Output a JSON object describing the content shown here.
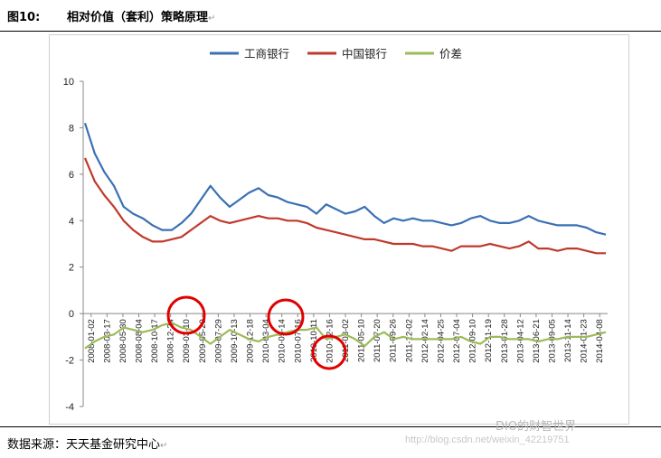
{
  "header": {
    "figure_label": "图10:",
    "title": "相对价值（套利）策略原理",
    "mark": "↵"
  },
  "footer": {
    "source": "数据来源：天天基金研究中心",
    "mark": "↵"
  },
  "watermark": {
    "url": "http://blog.csdn.net/weixin_42219751",
    "logo": "DIO的财智世界"
  },
  "chart_data": {
    "type": "line",
    "title": "",
    "xlabel": "",
    "ylabel": "",
    "ylim": [
      -4,
      10
    ],
    "yticks": [
      -4,
      -2,
      0,
      2,
      4,
      6,
      8,
      10
    ],
    "grid": false,
    "legend_position": "top",
    "x_tick_labels": [
      "2008-01-02",
      "2008-03-17",
      "2008-05-30",
      "2008-08-04",
      "2008-10-17",
      "2008-12-24",
      "2009-03-10",
      "2009-05-20",
      "2009-07-29",
      "2009-10-13",
      "2009-12-18",
      "2010-03-04",
      "2010-05-14",
      "2010-07-16",
      "2010-10-11",
      "2010-12-16",
      "2011-03-02",
      "2011-05-10",
      "2011-07-20",
      "2011-09-26",
      "2011-12-02",
      "2012-02-14",
      "2012-04-25",
      "2012-07-04",
      "2012-09-10",
      "2012-11-19",
      "2013-01-28",
      "2013-04-12",
      "2013-06-21",
      "2013-09-05",
      "2013-11-14",
      "2014-01-23",
      "2014-04-08"
    ],
    "series": [
      {
        "name": "工商银行",
        "color": "#3a70b4",
        "values": [
          8.2,
          6.9,
          6.1,
          5.5,
          4.6,
          4.3,
          4.1,
          3.8,
          3.6,
          3.6,
          3.9,
          4.3,
          4.9,
          5.5,
          5.0,
          4.6,
          4.9,
          5.2,
          5.4,
          5.1,
          5.0,
          4.8,
          4.7,
          4.6,
          4.3,
          4.7,
          4.5,
          4.3,
          4.4,
          4.6,
          4.2,
          3.9,
          4.1,
          4.0,
          4.1,
          4.0,
          4.0,
          3.9,
          3.8,
          3.9,
          4.1,
          4.2,
          4.0,
          3.9,
          3.9,
          4.0,
          4.2,
          4.0,
          3.9,
          3.8,
          3.8,
          3.8,
          3.7,
          3.5,
          3.4
        ]
      },
      {
        "name": "中国银行",
        "color": "#c0392b",
        "values": [
          6.7,
          5.7,
          5.1,
          4.6,
          4.0,
          3.6,
          3.3,
          3.1,
          3.1,
          3.2,
          3.3,
          3.6,
          3.9,
          4.2,
          4.0,
          3.9,
          4.0,
          4.1,
          4.2,
          4.1,
          4.1,
          4.0,
          4.0,
          3.9,
          3.7,
          3.6,
          3.5,
          3.4,
          3.3,
          3.2,
          3.2,
          3.1,
          3.0,
          3.0,
          3.0,
          2.9,
          2.9,
          2.8,
          2.7,
          2.9,
          2.9,
          2.9,
          3.0,
          2.9,
          2.8,
          2.9,
          3.1,
          2.8,
          2.8,
          2.7,
          2.8,
          2.8,
          2.7,
          2.6,
          2.6
        ]
      },
      {
        "name": "价差",
        "color": "#9cbb58",
        "values": [
          -1.5,
          -1.2,
          -1.0,
          -0.9,
          -0.6,
          -0.7,
          -0.8,
          -0.7,
          -0.5,
          -0.4,
          -0.6,
          -0.7,
          -1.0,
          -1.3,
          -1.0,
          -0.7,
          -0.9,
          -1.1,
          -1.2,
          -1.0,
          -0.9,
          -0.8,
          -0.7,
          -0.7,
          -0.6,
          -1.1,
          -1.0,
          -0.9,
          -1.1,
          -1.4,
          -1.0,
          -0.8,
          -1.1,
          -1.0,
          -1.1,
          -1.1,
          -1.1,
          -1.1,
          -1.1,
          -1.0,
          -1.2,
          -1.3,
          -1.0,
          -1.0,
          -1.1,
          -1.1,
          -1.1,
          -1.2,
          -1.1,
          -1.1,
          -1.0,
          -1.0,
          -1.0,
          -0.9,
          -0.8
        ]
      }
    ]
  }
}
